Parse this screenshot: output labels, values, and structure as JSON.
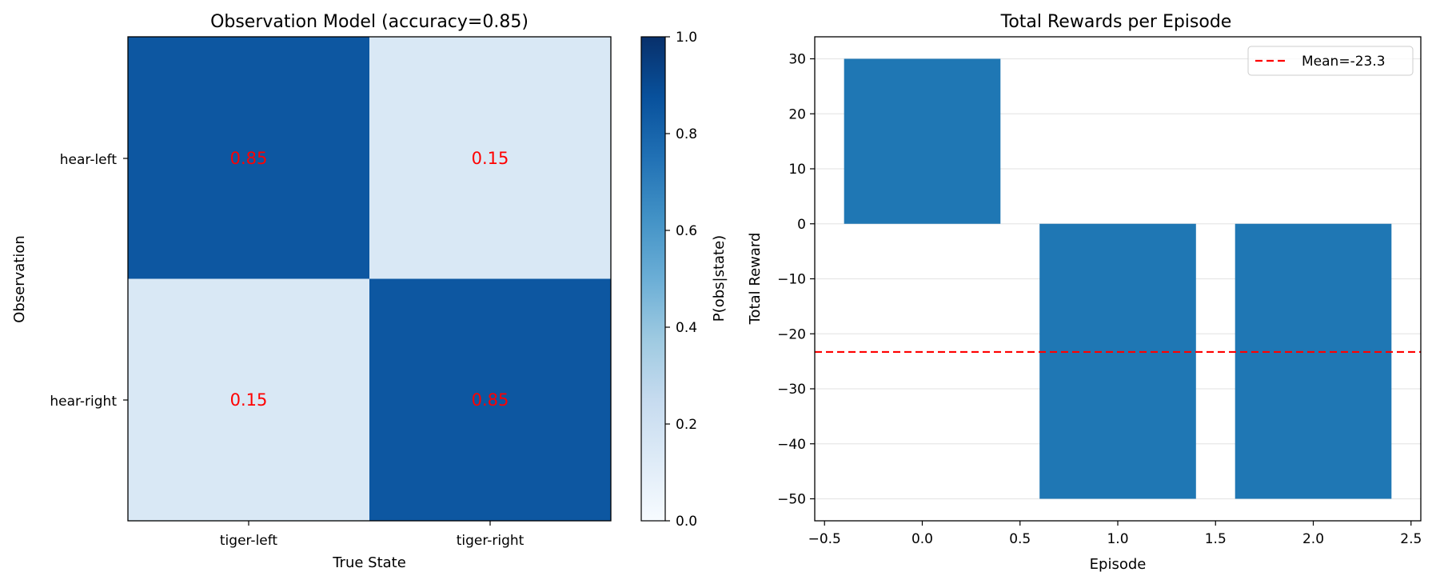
{
  "chart_data": [
    {
      "type": "heatmap",
      "title": "Observation Model (accuracy=0.85)",
      "xlabel": "True State",
      "ylabel": "Observation",
      "x_categories": [
        "tiger-left",
        "tiger-right"
      ],
      "y_categories": [
        "hear-left",
        "hear-right"
      ],
      "values": [
        [
          0.85,
          0.15
        ],
        [
          0.15,
          0.85
        ]
      ],
      "cell_labels": [
        [
          "0.85",
          "0.15"
        ],
        [
          "0.15",
          "0.85"
        ]
      ],
      "cell_label_color": "#ff0000",
      "colormap": "Blues",
      "colorbar": {
        "label": "P(obs|state)",
        "range": [
          0,
          1
        ],
        "ticks": [
          "0.0",
          "0.2",
          "0.4",
          "0.6",
          "0.8",
          "1.0"
        ]
      }
    },
    {
      "type": "bar",
      "title": "Total Rewards per Episode",
      "xlabel": "Episode",
      "ylabel": "Total Reward",
      "x": [
        0,
        1,
        2
      ],
      "values": [
        30,
        -50,
        -50
      ],
      "bar_color": "#1f77b4",
      "xlim": [
        -0.55,
        2.55
      ],
      "ylim": [
        -54,
        34
      ],
      "xticks": [
        "−0.5",
        "0.0",
        "0.5",
        "1.0",
        "1.5",
        "2.0",
        "2.5"
      ],
      "yticks": [
        "30",
        "20",
        "10",
        "0",
        "−10",
        "−20",
        "−30",
        "−40",
        "−50"
      ],
      "grid": "y",
      "mean_line": {
        "value": -23.3,
        "label": "Mean=-23.3",
        "color": "#ff0000",
        "style": "dashed"
      },
      "legend": {
        "placement": "upper right",
        "entries": [
          "Mean=-23.3"
        ]
      }
    }
  ]
}
